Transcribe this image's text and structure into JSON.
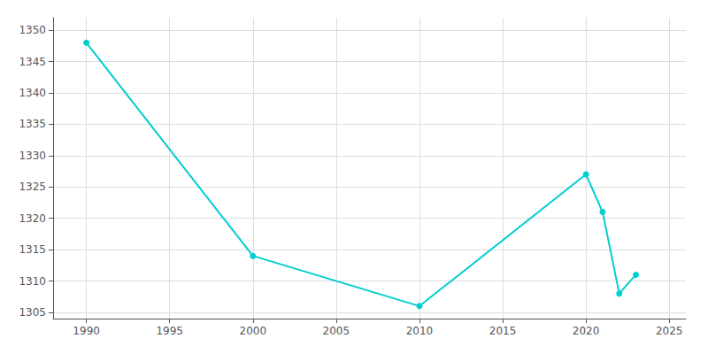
{
  "chart_data": {
    "type": "line",
    "x": [
      1990,
      2000,
      2010,
      2020,
      2021,
      2022,
      2023
    ],
    "values": [
      1348,
      1314,
      1306,
      1327,
      1321,
      1308,
      1311
    ],
    "color": "#00CED1",
    "marker": "circle",
    "xlim": [
      1988,
      2026
    ],
    "xticks": [
      1990,
      1995,
      2000,
      2005,
      2010,
      2015,
      2020,
      2025
    ],
    "ylim": [
      1304,
      1352
    ],
    "yticks": [
      1305,
      1310,
      1315,
      1320,
      1325,
      1330,
      1335,
      1340,
      1345,
      1350
    ],
    "grid": true
  }
}
